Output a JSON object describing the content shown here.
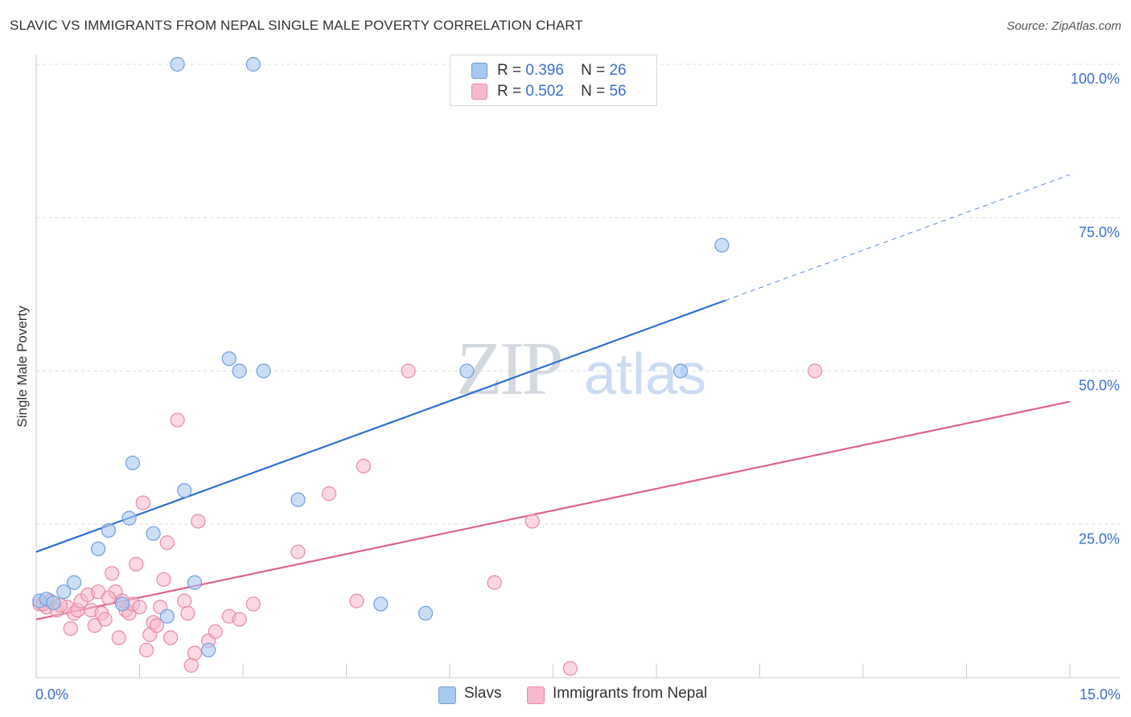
{
  "title": "SLAVIC VS IMMIGRANTS FROM NEPAL SINGLE MALE POVERTY CORRELATION CHART",
  "source": "Source: ZipAtlas.com",
  "watermark": {
    "zip": "ZIP",
    "atlas": "atlas"
  },
  "legend_top": {
    "rows": [
      {
        "r_label": "R =",
        "r_value": "0.396",
        "n_label": "N =",
        "n_value": "26"
      },
      {
        "r_label": "R =",
        "r_value": "0.502",
        "n_label": "N =",
        "n_value": "56"
      }
    ]
  },
  "legend_bottom": [
    "Slavs",
    "Immigrants from Nepal"
  ],
  "colors": {
    "slavs_fill": "#a9c8f0",
    "slavs_stroke": "#6f9fdc",
    "slavs_line": "#2e6fd1",
    "nepal_fill": "#f7b8cb",
    "nepal_stroke": "#e889a8",
    "nepal_line": "#e0628e",
    "axis_label": "#3b6fd0",
    "grid": "#dddddd"
  },
  "chart_data": {
    "type": "scatter",
    "title": "SLAVIC VS IMMIGRANTS FROM NEPAL SINGLE MALE POVERTY CORRELATION CHART",
    "xlabel": "",
    "ylabel": "Single Male Poverty",
    "xlim": [
      0,
      15
    ],
    "ylim": [
      0,
      100
    ],
    "x_tick_labels": [
      "0.0%",
      "15.0%"
    ],
    "y_tick_labels": [
      "25.0%",
      "50.0%",
      "75.0%",
      "100.0%"
    ],
    "y_tick_values": [
      25,
      50,
      75,
      100
    ],
    "series": [
      {
        "name": "Slavs",
        "r": 0.396,
        "n": 26,
        "points": [
          [
            0.05,
            12.5
          ],
          [
            0.15,
            12.8
          ],
          [
            0.25,
            12.2
          ],
          [
            0.4,
            14.0
          ],
          [
            0.55,
            15.5
          ],
          [
            0.9,
            21.0
          ],
          [
            1.05,
            24.0
          ],
          [
            1.25,
            12.0
          ],
          [
            1.35,
            26.0
          ],
          [
            1.4,
            35.0
          ],
          [
            1.7,
            23.5
          ],
          [
            1.9,
            10.0
          ],
          [
            2.05,
            100.0
          ],
          [
            2.15,
            30.5
          ],
          [
            2.3,
            15.5
          ],
          [
            2.5,
            4.5
          ],
          [
            2.8,
            52.0
          ],
          [
            2.95,
            50.0
          ],
          [
            3.15,
            100.0
          ],
          [
            3.3,
            50.0
          ],
          [
            3.8,
            29.0
          ],
          [
            5.0,
            12.0
          ],
          [
            5.65,
            10.5
          ],
          [
            6.25,
            50.0
          ],
          [
            9.35,
            50.0
          ],
          [
            9.95,
            70.5
          ]
        ],
        "trend": {
          "x": [
            0,
            10
          ],
          "y": [
            20.5,
            61.5
          ],
          "dashed_to": [
            15,
            82.0
          ]
        }
      },
      {
        "name": "Immigrants from Nepal",
        "r": 0.502,
        "n": 56,
        "points": [
          [
            0.05,
            12.0
          ],
          [
            0.15,
            11.5
          ],
          [
            0.2,
            12.5
          ],
          [
            0.3,
            11.0
          ],
          [
            0.45,
            11.5
          ],
          [
            0.5,
            8.0
          ],
          [
            0.55,
            10.5
          ],
          [
            0.6,
            11.0
          ],
          [
            0.65,
            12.5
          ],
          [
            0.75,
            13.5
          ],
          [
            0.8,
            11.0
          ],
          [
            0.85,
            8.5
          ],
          [
            0.9,
            14.0
          ],
          [
            0.95,
            10.5
          ],
          [
            1.0,
            9.5
          ],
          [
            1.1,
            17.0
          ],
          [
            1.15,
            14.0
          ],
          [
            1.2,
            6.5
          ],
          [
            1.25,
            12.5
          ],
          [
            1.3,
            11.0
          ],
          [
            1.35,
            10.5
          ],
          [
            1.4,
            12.0
          ],
          [
            1.45,
            18.5
          ],
          [
            1.5,
            11.5
          ],
          [
            1.55,
            28.5
          ],
          [
            1.6,
            4.5
          ],
          [
            1.65,
            7.0
          ],
          [
            1.7,
            9.0
          ],
          [
            1.75,
            8.5
          ],
          [
            1.8,
            11.5
          ],
          [
            1.85,
            16.0
          ],
          [
            1.9,
            22.0
          ],
          [
            1.95,
            6.5
          ],
          [
            2.05,
            42.0
          ],
          [
            2.15,
            12.5
          ],
          [
            2.2,
            10.5
          ],
          [
            2.25,
            2.0
          ],
          [
            2.3,
            4.0
          ],
          [
            2.35,
            25.5
          ],
          [
            2.5,
            6.0
          ],
          [
            2.6,
            7.5
          ],
          [
            2.8,
            10.0
          ],
          [
            2.95,
            9.5
          ],
          [
            3.15,
            12.0
          ],
          [
            3.8,
            20.5
          ],
          [
            4.25,
            30.0
          ],
          [
            4.65,
            12.5
          ],
          [
            4.75,
            34.5
          ],
          [
            5.4,
            50.0
          ],
          [
            6.65,
            15.5
          ],
          [
            7.2,
            25.5
          ],
          [
            7.75,
            1.5
          ],
          [
            11.3,
            50.0
          ],
          [
            0.1,
            12.0
          ],
          [
            0.35,
            11.8
          ],
          [
            1.05,
            13.0
          ]
        ],
        "trend": {
          "x": [
            0,
            15
          ],
          "y": [
            9.5,
            45.0
          ]
        }
      }
    ]
  }
}
